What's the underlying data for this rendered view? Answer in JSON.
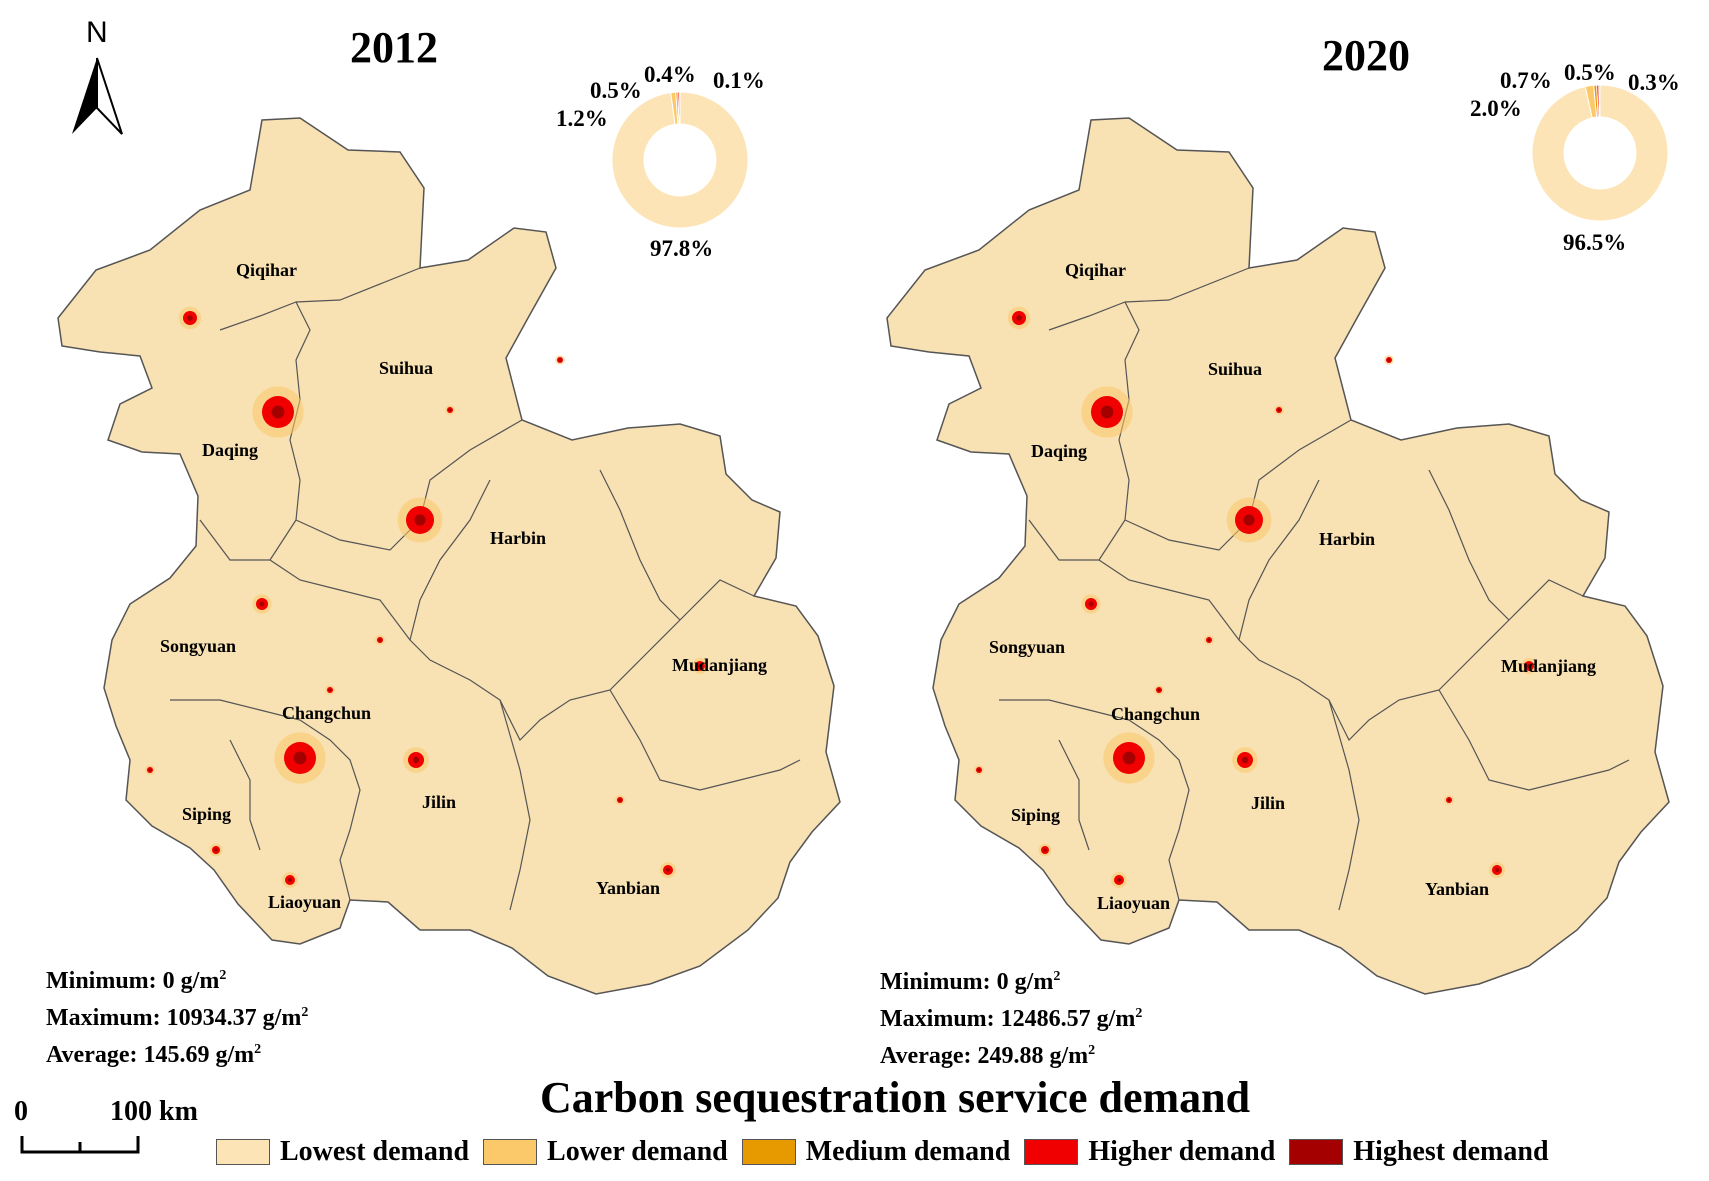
{
  "north_label": "N",
  "colors": {
    "lowest": "#FDE4B6",
    "lower": "#FCC96A",
    "medium": "#E69A00",
    "higher": "#F00000",
    "highest": "#A50000",
    "region_fill": "#F8E1B3",
    "boundary": "#555555"
  },
  "maps": [
    {
      "year": "2012",
      "cities": [
        "Qiqihar",
        "Suihua",
        "Daqing",
        "Harbin",
        "Songyuan",
        "Mudanjiang",
        "Changchun",
        "Jilin",
        "Siping",
        "Liaoyuan",
        "Yanbian"
      ],
      "shares": [
        {
          "class": "Lowest demand",
          "value": 97.8,
          "label": "97.8%"
        },
        {
          "class": "Lower demand",
          "value": 1.2,
          "label": "1.2%"
        },
        {
          "class": "Medium demand",
          "value": 0.5,
          "label": "0.5%"
        },
        {
          "class": "Higher demand",
          "value": 0.4,
          "label": "0.4%"
        },
        {
          "class": "Highest demand",
          "value": 0.1,
          "label": "0.1%"
        }
      ],
      "stats": {
        "min_label": "Minimum:",
        "min_value": "0 g/m",
        "min_sup": "2",
        "max_label": "Maximum:",
        "max_value": "10934.37 g/m",
        "max_sup": "2",
        "avg_label": "Average:",
        "avg_value": "145.69 g/m",
        "avg_sup": "2"
      }
    },
    {
      "year": "2020",
      "cities": [
        "Qiqihar",
        "Suihua",
        "Daqing",
        "Harbin",
        "Songyuan",
        "Mudanjiang",
        "Changchun",
        "Jilin",
        "Siping",
        "Liaoyuan",
        "Yanbian"
      ],
      "shares": [
        {
          "class": "Lowest demand",
          "value": 96.5,
          "label": "96.5%"
        },
        {
          "class": "Lower demand",
          "value": 2.0,
          "label": "2.0%"
        },
        {
          "class": "Medium demand",
          "value": 0.7,
          "label": "0.7%"
        },
        {
          "class": "Higher demand",
          "value": 0.5,
          "label": "0.5%"
        },
        {
          "class": "Highest demand",
          "value": 0.3,
          "label": "0.3%"
        }
      ],
      "stats": {
        "min_label": "Minimum:",
        "min_value": "0 g/m",
        "min_sup": "2",
        "max_label": "Maximum:",
        "max_value": "12486.57 g/m",
        "max_sup": "2",
        "avg_label": "Average:",
        "avg_value": "249.88 g/m",
        "avg_sup": "2"
      }
    }
  ],
  "title": "Carbon sequestration service demand",
  "scale_bar": {
    "zero": "0",
    "distance": "100 km"
  },
  "legend": [
    {
      "label": "Lowest demand",
      "color": "#FDE4B6"
    },
    {
      "label": "Lower demand",
      "color": "#FCC96A"
    },
    {
      "label": "Medium demand",
      "color": "#E69A00"
    },
    {
      "label": "Higher demand",
      "color": "#F00000"
    },
    {
      "label": "Highest demand",
      "color": "#A50000"
    }
  ]
}
